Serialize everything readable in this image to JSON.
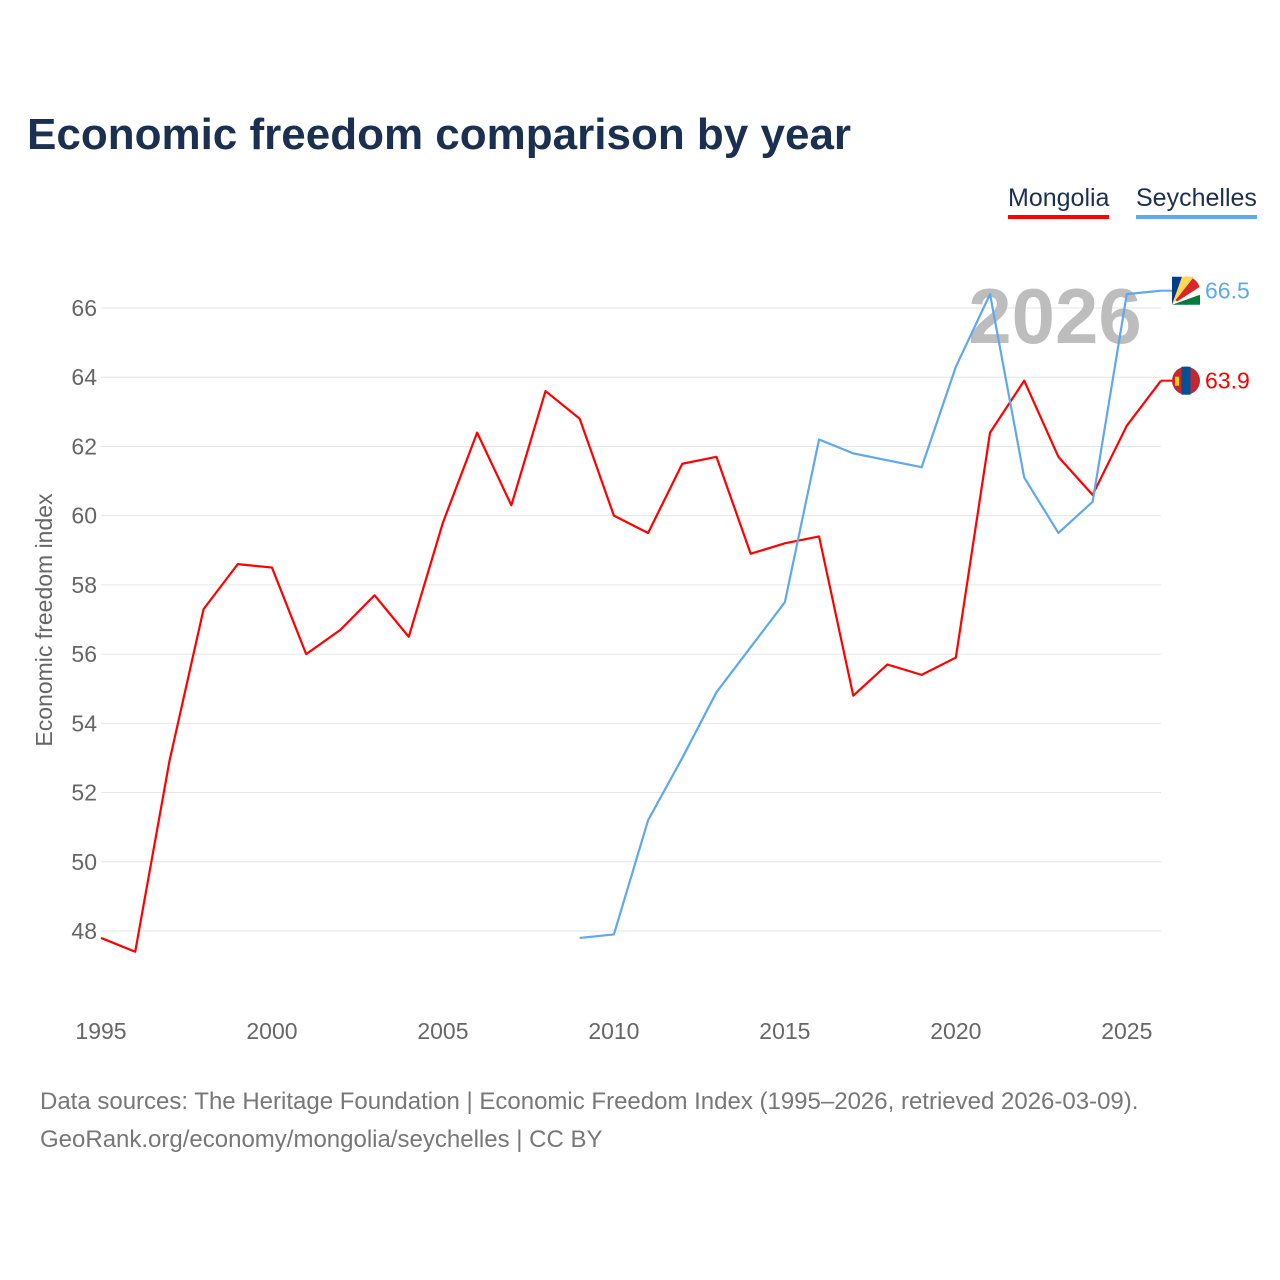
{
  "title": "Economic freedom comparison by year",
  "footer": {
    "line1": "Data sources: The Heritage Foundation | Economic Freedom Index (1995–2026, retrieved 2026-03-09).",
    "line2": "GeoRank.org/economy/mongolia/seychelles | CC BY"
  },
  "chart_data": {
    "type": "line",
    "title": "Economic freedom comparison by year",
    "xlabel": "",
    "ylabel": "Economic freedom index",
    "xlim": [
      1995,
      2026
    ],
    "ylim": [
      46,
      67.5
    ],
    "xticks": [
      1995,
      2000,
      2005,
      2010,
      2015,
      2020,
      2025
    ],
    "yticks": [
      48,
      50,
      52,
      54,
      56,
      58,
      60,
      62,
      64,
      66
    ],
    "grid": true,
    "legend": "top-right",
    "watermark_year": "2026",
    "series": [
      {
        "name": "Mongolia",
        "color": "#ff0000",
        "end_label": "63.9",
        "flag": "mongolia-flag",
        "x": [
          1995,
          1996,
          1997,
          1998,
          1999,
          2000,
          2001,
          2002,
          2003,
          2004,
          2005,
          2006,
          2007,
          2008,
          2009,
          2010,
          2011,
          2012,
          2013,
          2014,
          2015,
          2016,
          2017,
          2018,
          2019,
          2020,
          2021,
          2022,
          2023,
          2024,
          2025,
          2026
        ],
        "values": [
          47.8,
          47.4,
          52.9,
          57.3,
          58.6,
          58.5,
          56.0,
          56.7,
          57.7,
          56.5,
          59.8,
          62.4,
          60.3,
          63.6,
          62.8,
          60.0,
          59.5,
          61.5,
          61.7,
          58.9,
          59.2,
          59.4,
          54.8,
          55.7,
          55.4,
          55.9,
          62.4,
          63.9,
          61.7,
          60.6,
          62.6,
          63.9
        ]
      },
      {
        "name": "Seychelles",
        "color": "#5fa8ec",
        "end_label": "66.5",
        "flag": "seychelles-flag",
        "x": [
          2009,
          2010,
          2011,
          2012,
          2013,
          2014,
          2015,
          2016,
          2017,
          2018,
          2019,
          2020,
          2021,
          2022,
          2023,
          2024,
          2025,
          2026
        ],
        "values": [
          47.8,
          47.9,
          51.2,
          53.0,
          54.9,
          56.2,
          57.5,
          62.2,
          61.8,
          61.6,
          61.4,
          64.3,
          66.4,
          61.1,
          59.5,
          60.4,
          66.4,
          66.5
        ]
      }
    ]
  }
}
